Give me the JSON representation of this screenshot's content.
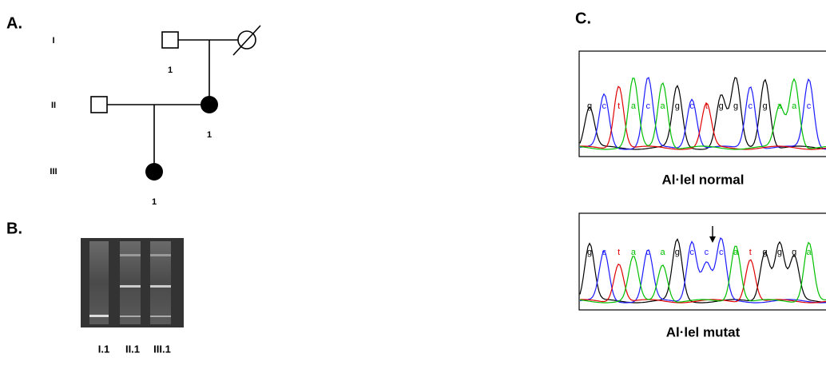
{
  "panel_a": {
    "label": "A.",
    "generations": [
      "I",
      "II",
      "III"
    ],
    "individuals": {
      "I_1": "1",
      "II_1": "1",
      "III_1": "1"
    }
  },
  "panel_b": {
    "label": "B.",
    "lanes": [
      "I.1",
      "II.1",
      "III.1"
    ]
  },
  "panel_c": {
    "label": "C.",
    "normal": {
      "bases": [
        "g",
        "c",
        "t",
        "a",
        "c",
        "a",
        "g",
        "c",
        "t",
        "g",
        "g",
        "c",
        "g",
        "a",
        "a",
        "c"
      ],
      "caption": "Al·lel normal"
    },
    "mutant": {
      "bases": [
        "g",
        "c",
        "t",
        "a",
        "c",
        "a",
        "g",
        "c",
        "c",
        "c",
        "a",
        "t",
        "g",
        "g",
        "g",
        "a"
      ],
      "caption": "Al·lel mutat"
    }
  }
}
